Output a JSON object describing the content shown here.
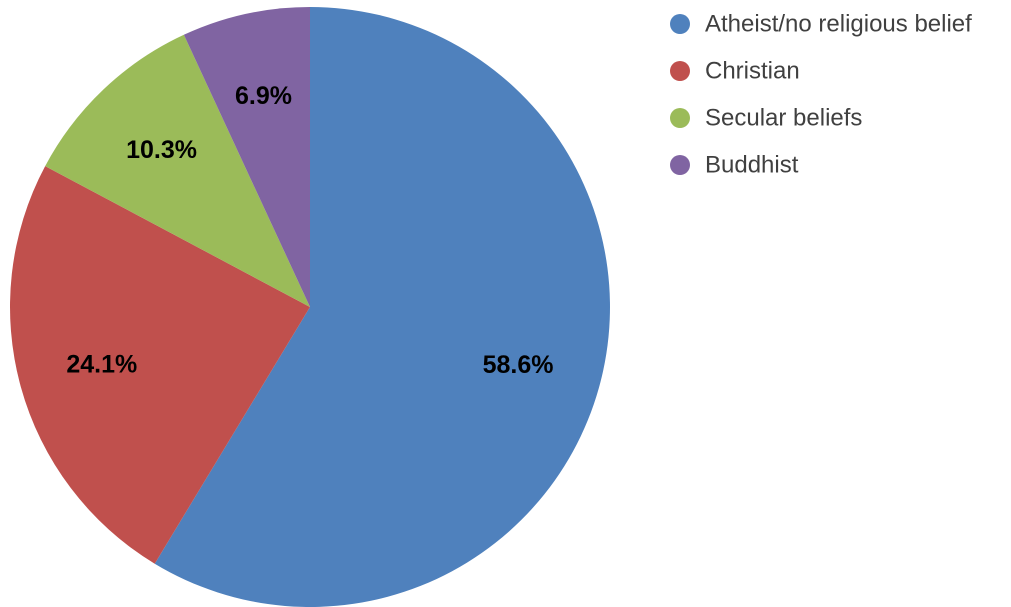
{
  "chart_data": {
    "type": "pie",
    "title": "",
    "categories": [
      "Atheist/no religious belief",
      "Christian",
      "Secular beliefs",
      "Buddhist"
    ],
    "values": [
      58.6,
      24.1,
      10.3,
      6.9
    ],
    "labels": [
      "58.6%",
      "24.1%",
      "10.3%",
      "6.9%"
    ],
    "colors": [
      "#4f81bd",
      "#c0504d",
      "#9bbb59",
      "#8064a2"
    ],
    "start_angle": "12 o'clock",
    "direction": "clockwise",
    "legend": {
      "placement": "top-right",
      "items": [
        {
          "label": "Atheist/no religious belief",
          "color": "#4f81bd"
        },
        {
          "label": "Christian",
          "color": "#c0504d"
        },
        {
          "label": "Secular beliefs",
          "color": "#9bbb59"
        },
        {
          "label": "Buddhist",
          "color": "#8064a2"
        }
      ]
    }
  }
}
